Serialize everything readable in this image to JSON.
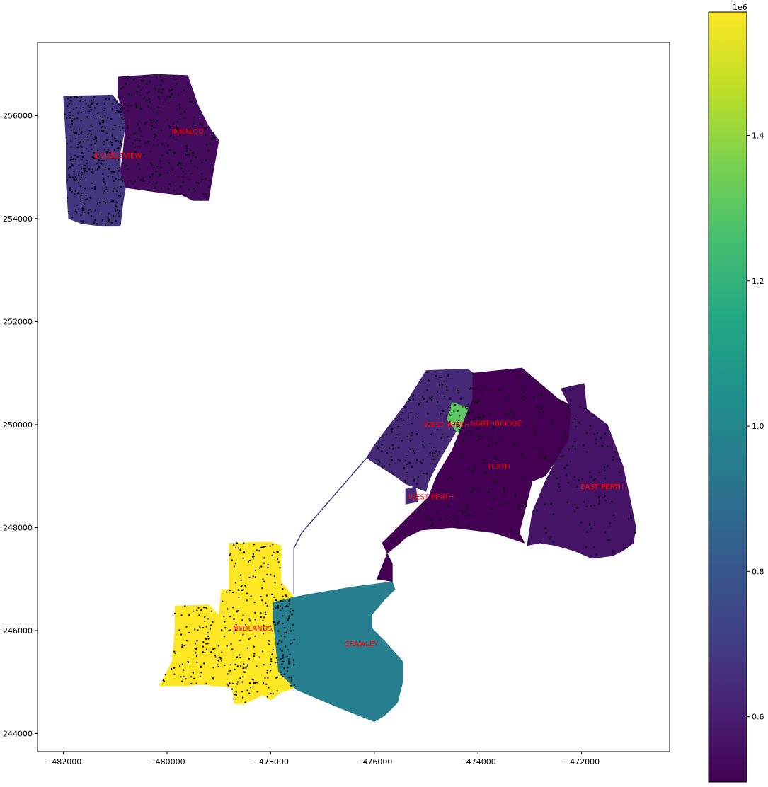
{
  "map": {
    "axes": {
      "xlim": [
        -482500,
        -470300
      ],
      "ylim": [
        243650,
        257420
      ],
      "xticks": [
        {
          "value": -482000,
          "label": "−482000"
        },
        {
          "value": -480000,
          "label": "−480000"
        },
        {
          "value": -478000,
          "label": "−478000"
        },
        {
          "value": -476000,
          "label": "−476000"
        },
        {
          "value": -474000,
          "label": "−474000"
        },
        {
          "value": -472000,
          "label": "−472000"
        }
      ],
      "yticks": [
        {
          "value": 244000,
          "label": "244000"
        },
        {
          "value": 246000,
          "label": "246000"
        },
        {
          "value": 248000,
          "label": "248000"
        },
        {
          "value": 250000,
          "label": "250000"
        },
        {
          "value": 252000,
          "label": "252000"
        },
        {
          "value": 254000,
          "label": "254000"
        },
        {
          "value": 256000,
          "label": "256000"
        }
      ]
    },
    "colorbar": {
      "colormap": "viridis",
      "range": [
        510000,
        1570000
      ],
      "offset_label": "1e6",
      "ticks": [
        {
          "value": 600000,
          "label": "0.6"
        },
        {
          "value": 800000,
          "label": "0.8"
        },
        {
          "value": 1000000,
          "label": "1.0"
        },
        {
          "value": 1200000,
          "label": "1.2"
        },
        {
          "value": 1400000,
          "label": "1.4"
        }
      ]
    },
    "suburbs": [
      {
        "name": "INNALOO",
        "value": 540000,
        "label_at": [
          -479600,
          255650
        ],
        "boundary": [
          [
            -480950,
            256750
          ],
          [
            -480200,
            256800
          ],
          [
            -479600,
            256780
          ],
          [
            -479400,
            256200
          ],
          [
            -479200,
            255800
          ],
          [
            -479000,
            255520
          ],
          [
            -479100,
            254950
          ],
          [
            -479200,
            254350
          ],
          [
            -479500,
            254350
          ],
          [
            -479700,
            254450
          ],
          [
            -480100,
            254500
          ],
          [
            -480800,
            254600
          ],
          [
            -480900,
            254900
          ],
          [
            -480850,
            255300
          ],
          [
            -480800,
            255800
          ],
          [
            -480950,
            256400
          ]
        ]
      },
      {
        "name": "DOUBLEVIEW",
        "value": 680000,
        "label_at": [
          -480950,
          255180
        ],
        "boundary": [
          [
            -482000,
            256380
          ],
          [
            -481050,
            256400
          ],
          [
            -480900,
            256200
          ],
          [
            -480800,
            255800
          ],
          [
            -480900,
            255300
          ],
          [
            -480900,
            254900
          ],
          [
            -480800,
            254600
          ],
          [
            -480850,
            254300
          ],
          [
            -480900,
            253850
          ],
          [
            -481250,
            253850
          ],
          [
            -481650,
            253900
          ],
          [
            -481900,
            254000
          ],
          [
            -481950,
            254700
          ],
          [
            -481950,
            255500
          ]
        ]
      },
      {
        "name": "NEDLANDS",
        "value": 1570000,
        "label_at": [
          -478350,
          246000
        ],
        "boundary": [
          [
            -478800,
            247700
          ],
          [
            -478000,
            247720
          ],
          [
            -477800,
            247650
          ],
          [
            -477800,
            246950
          ],
          [
            -477550,
            246650
          ],
          [
            -477900,
            246500
          ],
          [
            -477800,
            245800
          ],
          [
            -477700,
            245300
          ],
          [
            -477500,
            244900
          ],
          [
            -477800,
            244800
          ],
          [
            -478000,
            244650
          ],
          [
            -478150,
            244750
          ],
          [
            -478500,
            244580
          ],
          [
            -478700,
            244580
          ],
          [
            -478750,
            244900
          ],
          [
            -479300,
            244950
          ],
          [
            -479700,
            244930
          ],
          [
            -479900,
            244930
          ],
          [
            -480150,
            244930
          ],
          [
            -479900,
            245400
          ],
          [
            -479850,
            246000
          ],
          [
            -479850,
            246480
          ],
          [
            -479200,
            246500
          ],
          [
            -479000,
            246300
          ],
          [
            -478950,
            246800
          ],
          [
            -478800,
            246800
          ]
        ]
      },
      {
        "name": "CRAWLEY",
        "value": 960000,
        "label_at": [
          -476250,
          245700
        ],
        "boundary": [
          [
            -477950,
            246550
          ],
          [
            -477550,
            246650
          ],
          [
            -477000,
            246750
          ],
          [
            -476400,
            246850
          ],
          [
            -475650,
            246950
          ],
          [
            -475600,
            246800
          ],
          [
            -475800,
            246600
          ],
          [
            -476050,
            246300
          ],
          [
            -476050,
            246050
          ],
          [
            -475800,
            245800
          ],
          [
            -475450,
            245400
          ],
          [
            -475450,
            245000
          ],
          [
            -475550,
            244600
          ],
          [
            -475800,
            244350
          ],
          [
            -476000,
            244230
          ],
          [
            -476300,
            244350
          ],
          [
            -476800,
            244550
          ],
          [
            -477500,
            244850
          ],
          [
            -477850,
            245200
          ],
          [
            -477900,
            245700
          ],
          [
            -477950,
            246200
          ]
        ]
      },
      {
        "name": "WEST PERTH",
        "value": 640000,
        "label_at": [
          -474600,
          249950
        ],
        "boundary": [
          [
            -475000,
            251050
          ],
          [
            -474200,
            251080
          ],
          [
            -473800,
            250800
          ],
          [
            -473700,
            250550
          ],
          [
            -474200,
            250300
          ],
          [
            -474400,
            249900
          ],
          [
            -474750,
            249300
          ],
          [
            -474900,
            249000
          ],
          [
            -474950,
            248900
          ],
          [
            -475000,
            248700
          ],
          [
            -475400,
            248850
          ],
          [
            -475600,
            249000
          ],
          [
            -476150,
            249350
          ],
          [
            -476000,
            249600
          ],
          [
            -475400,
            250400
          ]
        ]
      },
      {
        "name": "NORTHBRIDGE",
        "value": 1300000,
        "label_at": [
          -473650,
          249980
        ],
        "boundary": [
          [
            -474500,
            250430
          ],
          [
            -474100,
            250300
          ],
          [
            -473600,
            250050
          ],
          [
            -473800,
            249650
          ],
          [
            -474400,
            249850
          ],
          [
            -474600,
            250100
          ]
        ]
      },
      {
        "name": "PERTH",
        "value": 510000,
        "label_at": [
          -473600,
          249150
        ],
        "boundary": [
          [
            -474100,
            251000
          ],
          [
            -473150,
            251100
          ],
          [
            -472450,
            250500
          ],
          [
            -472250,
            250400
          ],
          [
            -472000,
            249800
          ],
          [
            -471950,
            249500
          ],
          [
            -472500,
            249300
          ],
          [
            -472700,
            249000
          ],
          [
            -472950,
            248900
          ],
          [
            -473200,
            247900
          ],
          [
            -473100,
            247700
          ],
          [
            -473700,
            247900
          ],
          [
            -474500,
            248000
          ],
          [
            -475100,
            247950
          ],
          [
            -475400,
            247800
          ],
          [
            -475500,
            247700
          ],
          [
            -475750,
            247500
          ],
          [
            -475950,
            247000
          ],
          [
            -475650,
            246950
          ],
          [
            -475650,
            247300
          ],
          [
            -475850,
            247700
          ],
          [
            -475550,
            248000
          ],
          [
            -474950,
            248600
          ],
          [
            -474800,
            249000
          ],
          [
            -474500,
            249500
          ],
          [
            -474300,
            250000
          ],
          [
            -474100,
            250500
          ]
        ]
      },
      {
        "name": "EAST PERTH",
        "value": 570000,
        "label_at": [
          -471600,
          248750
        ],
        "boundary": [
          [
            -472400,
            250700
          ],
          [
            -471950,
            250800
          ],
          [
            -471900,
            250300
          ],
          [
            -471500,
            250000
          ],
          [
            -471200,
            249200
          ],
          [
            -471050,
            248500
          ],
          [
            -470950,
            248000
          ],
          [
            -471000,
            247700
          ],
          [
            -471200,
            247550
          ],
          [
            -471400,
            247450
          ],
          [
            -471800,
            247400
          ],
          [
            -472150,
            247550
          ],
          [
            -472500,
            247650
          ],
          [
            -472800,
            247700
          ],
          [
            -473050,
            247650
          ],
          [
            -472950,
            248300
          ],
          [
            -472700,
            248900
          ],
          [
            -472500,
            249300
          ],
          [
            -472250,
            249700
          ],
          [
            -472200,
            250300
          ]
        ]
      }
    ],
    "suburb_labels": [
      {
        "text": "INNALOO",
        "at": [
          -479600,
          255650
        ]
      },
      {
        "text": "DOUBLEVIEW",
        "at": [
          -480950,
          255180
        ]
      },
      {
        "text": "WEST PERTH",
        "at": [
          -474600,
          249950
        ]
      },
      {
        "text": "NORTHBRIDGE",
        "at": [
          -473650,
          249980
        ]
      },
      {
        "text": "PERTH",
        "at": [
          -473600,
          249150
        ]
      },
      {
        "text": "EAST PERTH",
        "at": [
          -471600,
          248750
        ]
      },
      {
        "text": "WEST PERTH",
        "at": [
          -474900,
          248550
        ]
      },
      {
        "text": "NEDLANDS",
        "at": [
          -478350,
          246000
        ]
      },
      {
        "text": "CRAWLEY",
        "at": [
          -476250,
          245700
        ]
      }
    ],
    "colors": {
      "label_text": "#ff0000",
      "points": "#000000",
      "connector_line": "#46337e"
    }
  }
}
